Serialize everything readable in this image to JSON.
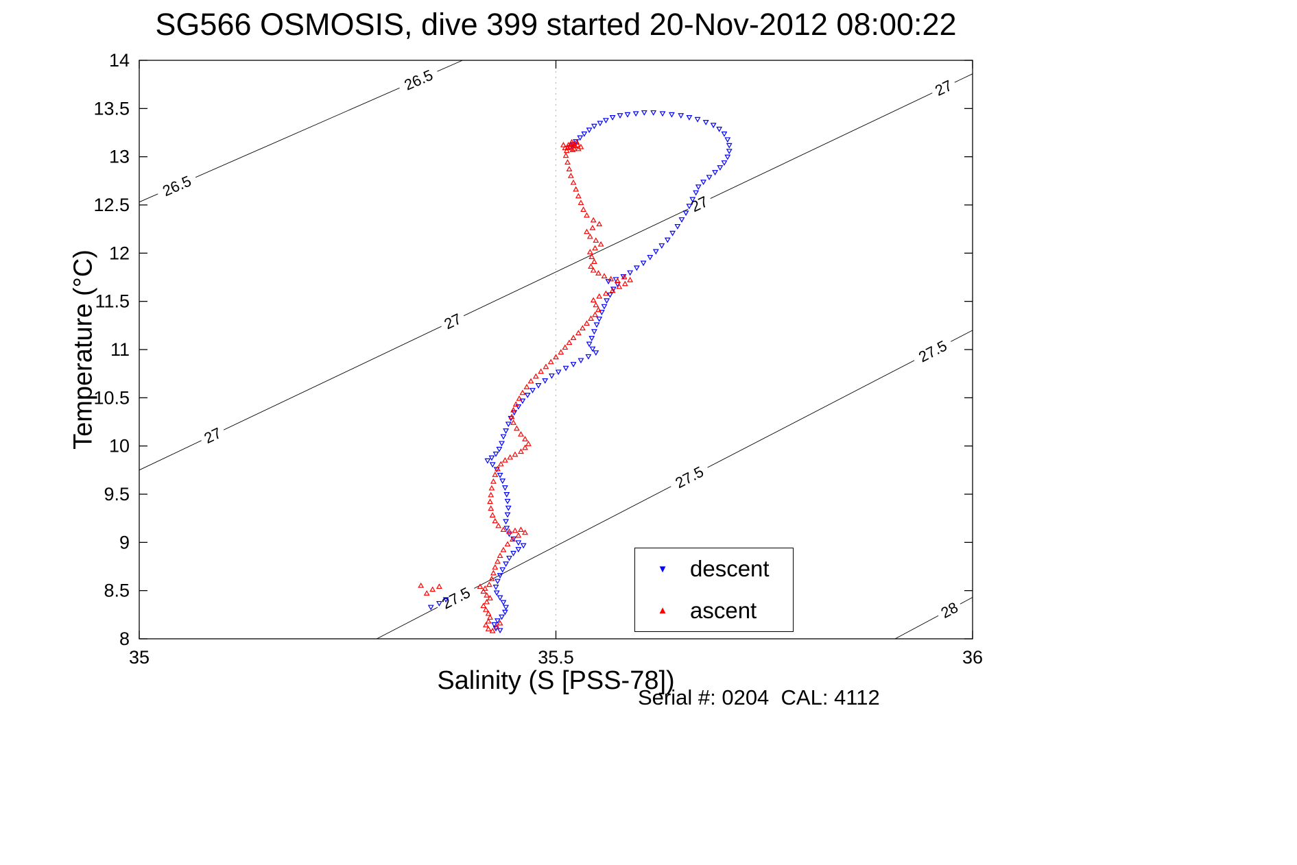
{
  "page": {
    "footer": "Serial #: 0204  CAL: 4112"
  },
  "chart_data": {
    "type": "scatter",
    "title": "SG566 OSMOSIS, dive 399 started 20-Nov-2012 08:00:22",
    "xlabel": "Salinity (S [PSS-78])",
    "ylabel": "Temperature (°C)",
    "xlim": [
      35,
      36
    ],
    "ylim": [
      8,
      14
    ],
    "xticks": {
      "values": [
        35,
        35.5,
        36
      ],
      "labels": [
        "35",
        "35.5",
        "36"
      ]
    },
    "yticks": {
      "values": [
        8,
        8.5,
        9,
        9.5,
        10,
        10.5,
        11,
        11.5,
        12,
        12.5,
        13,
        13.5,
        14
      ],
      "labels": [
        "8",
        "8.5",
        "9",
        "9.5",
        "10",
        "10.5",
        "11",
        "11.5",
        "12",
        "12.5",
        "13",
        "13.5",
        "14"
      ]
    },
    "grid_vertical_dotted": [
      35.5
    ],
    "isopycnals": [
      {
        "value": "26.5",
        "line": [
          [
            35.0,
            12.53
          ],
          [
            35.388,
            14.0
          ]
        ],
        "labels": [
          {
            "s": 35.045
          },
          {
            "s": 35.335
          }
        ]
      },
      {
        "value": "27",
        "line": [
          [
            35.0,
            9.75
          ],
          [
            36.0,
            13.86
          ]
        ],
        "labels": [
          {
            "s": 35.088
          },
          {
            "s": 35.376
          },
          {
            "s": 35.672
          },
          {
            "s": 35.965
          }
        ]
      },
      {
        "value": "27.5",
        "line": [
          [
            35.285,
            8.0
          ],
          [
            36.0,
            11.2
          ]
        ],
        "labels": [
          {
            "s": 35.38
          },
          {
            "s": 35.66
          },
          {
            "s": 35.952
          }
        ]
      },
      {
        "value": "28",
        "line": [
          [
            35.907,
            8.0
          ],
          [
            36.0,
            8.43
          ]
        ],
        "labels": [
          {
            "s": 35.972
          }
        ]
      }
    ],
    "series": [
      {
        "name": "descent",
        "marker": "triangle-down",
        "color": "#0000ff",
        "points": [
          [
            35.517,
            13.1
          ],
          [
            35.52,
            13.13
          ],
          [
            35.524,
            13.16
          ],
          [
            35.529,
            13.2
          ],
          [
            35.534,
            13.24
          ],
          [
            35.54,
            13.28
          ],
          [
            35.546,
            13.32
          ],
          [
            35.553,
            13.35
          ],
          [
            35.56,
            13.38
          ],
          [
            35.568,
            13.41
          ],
          [
            35.577,
            13.43
          ],
          [
            35.586,
            13.44
          ],
          [
            35.596,
            13.45
          ],
          [
            35.606,
            13.46
          ],
          [
            35.617,
            13.46
          ],
          [
            35.628,
            13.45
          ],
          [
            35.639,
            13.44
          ],
          [
            35.65,
            13.43
          ],
          [
            35.66,
            13.41
          ],
          [
            35.67,
            13.39
          ],
          [
            35.68,
            13.36
          ],
          [
            35.689,
            13.33
          ],
          [
            35.696,
            13.29
          ],
          [
            35.702,
            13.24
          ],
          [
            35.706,
            13.18
          ],
          [
            35.708,
            13.12
          ],
          [
            35.708,
            13.06
          ],
          [
            35.706,
            13.0
          ],
          [
            35.702,
            12.94
          ],
          [
            35.697,
            12.89
          ],
          [
            35.691,
            12.84
          ],
          [
            35.684,
            12.79
          ],
          [
            35.677,
            12.74
          ],
          [
            35.671,
            12.69
          ],
          [
            35.668,
            12.63
          ],
          [
            35.664,
            12.56
          ],
          [
            35.66,
            12.49
          ],
          [
            35.656,
            12.42
          ],
          [
            35.651,
            12.35
          ],
          [
            35.646,
            12.28
          ],
          [
            35.64,
            12.21
          ],
          [
            35.634,
            12.14
          ],
          [
            35.627,
            12.08
          ],
          [
            35.62,
            12.02
          ],
          [
            35.613,
            11.96
          ],
          [
            35.605,
            11.9
          ],
          [
            35.597,
            11.85
          ],
          [
            35.589,
            11.8
          ],
          [
            35.581,
            11.76
          ],
          [
            35.572,
            11.73
          ],
          [
            35.563,
            11.71
          ],
          [
            35.574,
            11.68
          ],
          [
            35.569,
            11.63
          ],
          [
            35.565,
            11.57
          ],
          [
            35.561,
            11.51
          ],
          [
            35.558,
            11.45
          ],
          [
            35.555,
            11.39
          ],
          [
            35.552,
            11.32
          ],
          [
            35.549,
            11.26
          ],
          [
            35.546,
            11.19
          ],
          [
            35.543,
            11.12
          ],
          [
            35.54,
            11.06
          ],
          [
            35.544,
            11.01
          ],
          [
            35.548,
            10.97
          ],
          [
            35.539,
            10.93
          ],
          [
            35.53,
            10.89
          ],
          [
            35.521,
            10.85
          ],
          [
            35.512,
            10.81
          ],
          [
            35.503,
            10.77
          ],
          [
            35.495,
            10.73
          ],
          [
            35.487,
            10.68
          ],
          [
            35.479,
            10.63
          ],
          [
            35.472,
            10.58
          ],
          [
            35.466,
            10.53
          ],
          [
            35.46,
            10.47
          ],
          [
            35.455,
            10.41
          ],
          [
            35.45,
            10.35
          ],
          [
            35.446,
            10.29
          ],
          [
            35.443,
            10.23
          ],
          [
            35.44,
            10.16
          ],
          [
            35.437,
            10.1
          ],
          [
            35.435,
            10.03
          ],
          [
            35.432,
            9.97
          ],
          [
            35.428,
            9.92
          ],
          [
            35.423,
            9.88
          ],
          [
            35.418,
            9.85
          ],
          [
            35.424,
            9.81
          ],
          [
            35.429,
            9.76
          ],
          [
            35.433,
            9.7
          ],
          [
            35.436,
            9.64
          ],
          [
            35.439,
            9.57
          ],
          [
            35.441,
            9.5
          ],
          [
            35.442,
            9.43
          ],
          [
            35.443,
            9.36
          ],
          [
            35.442,
            9.29
          ],
          [
            35.44,
            9.22
          ],
          [
            35.441,
            9.15
          ],
          [
            35.444,
            9.09
          ],
          [
            35.449,
            9.04
          ],
          [
            35.455,
            9.0
          ],
          [
            35.461,
            8.97
          ],
          [
            35.455,
            8.93
          ],
          [
            35.449,
            8.89
          ],
          [
            35.444,
            8.84
          ],
          [
            35.44,
            8.78
          ],
          [
            35.436,
            8.72
          ],
          [
            35.433,
            8.66
          ],
          [
            35.43,
            8.6
          ],
          [
            35.428,
            8.54
          ],
          [
            35.429,
            8.48
          ],
          [
            35.433,
            8.43
          ],
          [
            35.437,
            8.38
          ],
          [
            35.44,
            8.33
          ],
          [
            35.439,
            8.28
          ],
          [
            35.435,
            8.23
          ],
          [
            35.43,
            8.19
          ],
          [
            35.426,
            8.15
          ],
          [
            35.428,
            8.11
          ],
          [
            35.433,
            8.09
          ],
          [
            35.36,
            8.37
          ],
          [
            35.368,
            8.41
          ],
          [
            35.35,
            8.33
          ]
        ]
      },
      {
        "name": "ascent",
        "marker": "triangle-up",
        "color": "#ff0000",
        "points": [
          [
            35.511,
            13.09
          ],
          [
            35.515,
            13.12
          ],
          [
            35.519,
            13.15
          ],
          [
            35.523,
            13.11
          ],
          [
            35.527,
            13.08
          ],
          [
            35.513,
            13.06
          ],
          [
            35.517,
            13.1
          ],
          [
            35.521,
            13.13
          ],
          [
            35.525,
            13.15
          ],
          [
            35.509,
            13.12
          ],
          [
            35.514,
            13.09
          ],
          [
            35.52,
            13.07
          ],
          [
            35.526,
            13.12
          ],
          [
            35.53,
            13.1
          ],
          [
            35.518,
            13.13
          ],
          [
            35.522,
            13.08
          ],
          [
            35.512,
            13.01
          ],
          [
            35.514,
            12.94
          ],
          [
            35.516,
            12.87
          ],
          [
            35.518,
            12.8
          ],
          [
            35.521,
            12.73
          ],
          [
            35.524,
            12.66
          ],
          [
            35.527,
            12.59
          ],
          [
            35.53,
            12.52
          ],
          [
            35.533,
            12.45
          ],
          [
            35.537,
            12.39
          ],
          [
            35.545,
            12.34
          ],
          [
            35.552,
            12.3
          ],
          [
            35.544,
            12.26
          ],
          [
            35.537,
            12.22
          ],
          [
            35.541,
            12.17
          ],
          [
            35.548,
            12.13
          ],
          [
            35.554,
            12.09
          ],
          [
            35.547,
            12.05
          ],
          [
            35.541,
            12.01
          ],
          [
            35.543,
            11.96
          ],
          [
            35.546,
            11.91
          ],
          [
            35.542,
            11.86
          ],
          [
            35.545,
            11.82
          ],
          [
            35.551,
            11.79
          ],
          [
            35.558,
            11.76
          ],
          [
            35.566,
            11.73
          ],
          [
            35.574,
            11.71
          ],
          [
            35.582,
            11.75
          ],
          [
            35.589,
            11.72
          ],
          [
            35.583,
            11.68
          ],
          [
            35.576,
            11.65
          ],
          [
            35.568,
            11.61
          ],
          [
            35.56,
            11.58
          ],
          [
            35.552,
            11.55
          ],
          [
            35.545,
            11.51
          ],
          [
            35.548,
            11.46
          ],
          [
            35.551,
            11.41
          ],
          [
            35.547,
            11.36
          ],
          [
            35.542,
            11.32
          ],
          [
            35.537,
            11.27
          ],
          [
            35.532,
            11.22
          ],
          [
            35.527,
            11.17
          ],
          [
            35.521,
            11.12
          ],
          [
            35.516,
            11.07
          ],
          [
            35.511,
            11.02
          ],
          [
            35.506,
            10.97
          ],
          [
            35.5,
            10.92
          ],
          [
            35.494,
            10.87
          ],
          [
            35.488,
            10.82
          ],
          [
            35.482,
            10.77
          ],
          [
            35.476,
            10.72
          ],
          [
            35.47,
            10.67
          ],
          [
            35.465,
            10.61
          ],
          [
            35.46,
            10.55
          ],
          [
            35.456,
            10.49
          ],
          [
            35.452,
            10.43
          ],
          [
            35.449,
            10.37
          ],
          [
            35.447,
            10.3
          ],
          [
            35.449,
            10.24
          ],
          [
            35.453,
            10.18
          ],
          [
            35.458,
            10.12
          ],
          [
            35.463,
            10.07
          ],
          [
            35.467,
            10.02
          ],
          [
            35.463,
            9.98
          ],
          [
            35.458,
            9.94
          ],
          [
            35.451,
            9.91
          ],
          [
            35.445,
            9.88
          ],
          [
            35.439,
            9.85
          ],
          [
            35.434,
            9.81
          ],
          [
            35.43,
            9.76
          ],
          [
            35.427,
            9.7
          ],
          [
            35.425,
            9.63
          ],
          [
            35.423,
            9.56
          ],
          [
            35.422,
            9.49
          ],
          [
            35.421,
            9.42
          ],
          [
            35.422,
            9.35
          ],
          [
            35.424,
            9.28
          ],
          [
            35.427,
            9.22
          ],
          [
            35.431,
            9.17
          ],
          [
            35.437,
            9.13
          ],
          [
            35.444,
            9.11
          ],
          [
            35.451,
            9.12
          ],
          [
            35.458,
            9.13
          ],
          [
            35.463,
            9.1
          ],
          [
            35.455,
            9.07
          ],
          [
            35.448,
            9.03
          ],
          [
            35.442,
            8.98
          ],
          [
            35.437,
            8.92
          ],
          [
            35.433,
            8.86
          ],
          [
            35.43,
            8.8
          ],
          [
            35.427,
            8.74
          ],
          [
            35.425,
            8.68
          ],
          [
            35.423,
            8.62
          ],
          [
            35.42,
            8.56
          ],
          [
            35.415,
            8.52
          ],
          [
            35.409,
            8.54
          ],
          [
            35.413,
            8.49
          ],
          [
            35.417,
            8.45
          ],
          [
            35.421,
            8.42
          ],
          [
            35.417,
            8.38
          ],
          [
            35.413,
            8.34
          ],
          [
            35.416,
            8.3
          ],
          [
            35.419,
            8.26
          ],
          [
            35.421,
            8.22
          ],
          [
            35.419,
            8.18
          ],
          [
            35.416,
            8.14
          ],
          [
            35.419,
            8.1
          ],
          [
            35.424,
            8.08
          ],
          [
            35.429,
            8.12
          ],
          [
            35.433,
            8.16
          ],
          [
            35.352,
            8.51
          ],
          [
            35.345,
            8.47
          ],
          [
            35.36,
            8.54
          ],
          [
            35.338,
            8.55
          ]
        ]
      }
    ],
    "legend": {
      "position": "lower-right",
      "entries": [
        {
          "label": "descent",
          "marker": "triangle-down",
          "color": "#0000ff"
        },
        {
          "label": "ascent",
          "marker": "triangle-up",
          "color": "#ff0000"
        }
      ]
    }
  }
}
